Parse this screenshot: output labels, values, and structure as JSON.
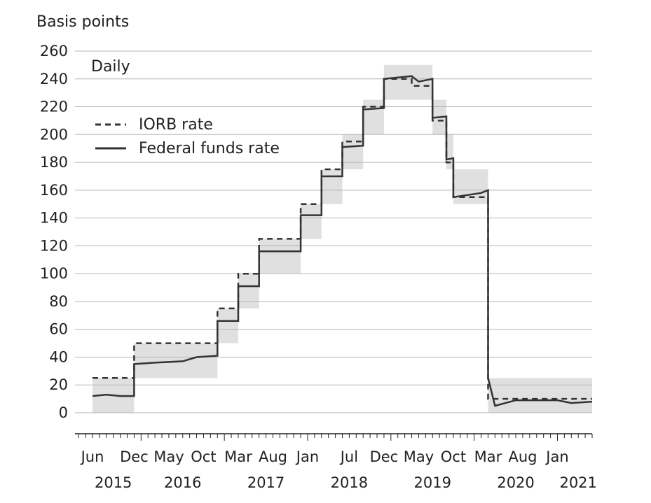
{
  "chart_data": {
    "type": "line",
    "ylabel": "Basis points",
    "annotation": "Daily",
    "ylim": [
      0,
      260
    ],
    "yticks": [
      0,
      20,
      40,
      60,
      80,
      100,
      120,
      140,
      160,
      180,
      200,
      220,
      240,
      260
    ],
    "grid": true,
    "legend_position": "top-left",
    "x_month_labels": [
      {
        "label": "Jun",
        "date": "2015-06"
      },
      {
        "label": "Dec",
        "date": "2015-12"
      },
      {
        "label": "May",
        "date": "2016-05"
      },
      {
        "label": "Oct",
        "date": "2016-10"
      },
      {
        "label": "Mar",
        "date": "2017-03"
      },
      {
        "label": "Aug",
        "date": "2017-08"
      },
      {
        "label": "Jan",
        "date": "2018-01"
      },
      {
        "label": "Jul",
        "date": "2018-07"
      },
      {
        "label": "Dec",
        "date": "2018-12"
      },
      {
        "label": "May",
        "date": "2019-05"
      },
      {
        "label": "Oct",
        "date": "2019-10"
      },
      {
        "label": "Mar",
        "date": "2020-03"
      },
      {
        "label": "Aug",
        "date": "2020-08"
      },
      {
        "label": "Jan",
        "date": "2021-01"
      }
    ],
    "x_year_labels": [
      {
        "label": "2015",
        "date": "2015-09"
      },
      {
        "label": "2016",
        "date": "2016-07"
      },
      {
        "label": "2017",
        "date": "2017-07"
      },
      {
        "label": "2018",
        "date": "2018-07"
      },
      {
        "label": "2019",
        "date": "2019-07"
      },
      {
        "label": "2020",
        "date": "2020-07"
      },
      {
        "label": "2021",
        "date": "2021-04"
      }
    ],
    "target_ranges": [
      {
        "start": "2015-06",
        "end": "2015-12",
        "low": 0,
        "high": 25
      },
      {
        "start": "2015-12",
        "end": "2016-12",
        "low": 25,
        "high": 50
      },
      {
        "start": "2016-12",
        "end": "2017-03",
        "low": 50,
        "high": 75
      },
      {
        "start": "2017-03",
        "end": "2017-06",
        "low": 75,
        "high": 100
      },
      {
        "start": "2017-06",
        "end": "2017-12",
        "low": 100,
        "high": 125
      },
      {
        "start": "2017-12",
        "end": "2018-03",
        "low": 125,
        "high": 150
      },
      {
        "start": "2018-03",
        "end": "2018-06",
        "low": 150,
        "high": 175
      },
      {
        "start": "2018-06",
        "end": "2018-09",
        "low": 175,
        "high": 200
      },
      {
        "start": "2018-09",
        "end": "2018-12",
        "low": 200,
        "high": 225
      },
      {
        "start": "2018-12",
        "end": "2019-07",
        "low": 225,
        "high": 250
      },
      {
        "start": "2019-07",
        "end": "2019-09",
        "low": 200,
        "high": 225
      },
      {
        "start": "2019-09",
        "end": "2019-10",
        "low": 175,
        "high": 200
      },
      {
        "start": "2019-10",
        "end": "2020-03",
        "low": 150,
        "high": 175
      },
      {
        "start": "2020-03",
        "end": "2021-06",
        "low": 0,
        "high": 25
      }
    ],
    "series": [
      {
        "name": "IORB rate",
        "style": "dashed",
        "points": [
          [
            "2015-06",
            25
          ],
          [
            "2015-12",
            25
          ],
          [
            "2015-12",
            50
          ],
          [
            "2016-12",
            50
          ],
          [
            "2016-12",
            75
          ],
          [
            "2017-03",
            75
          ],
          [
            "2017-03",
            100
          ],
          [
            "2017-06",
            100
          ],
          [
            "2017-06",
            125
          ],
          [
            "2017-12",
            125
          ],
          [
            "2017-12",
            150
          ],
          [
            "2018-03",
            150
          ],
          [
            "2018-03",
            175
          ],
          [
            "2018-06",
            175
          ],
          [
            "2018-06",
            195
          ],
          [
            "2018-09",
            195
          ],
          [
            "2018-09",
            220
          ],
          [
            "2018-12",
            220
          ],
          [
            "2018-12",
            240
          ],
          [
            "2019-04",
            240
          ],
          [
            "2019-04",
            235
          ],
          [
            "2019-07",
            235
          ],
          [
            "2019-07",
            210
          ],
          [
            "2019-09",
            210
          ],
          [
            "2019-09",
            180
          ],
          [
            "2019-10",
            180
          ],
          [
            "2019-10",
            155
          ],
          [
            "2020-03",
            155
          ],
          [
            "2020-03",
            110
          ],
          [
            "2020-03",
            10
          ],
          [
            "2021-06",
            10
          ]
        ]
      },
      {
        "name": "Federal funds rate",
        "style": "solid",
        "points": [
          [
            "2015-06",
            12
          ],
          [
            "2015-08",
            13
          ],
          [
            "2015-10",
            12
          ],
          [
            "2015-12",
            12
          ],
          [
            "2015-12",
            35
          ],
          [
            "2016-03",
            36
          ],
          [
            "2016-07",
            37
          ],
          [
            "2016-09",
            40
          ],
          [
            "2016-12",
            41
          ],
          [
            "2016-12",
            66
          ],
          [
            "2017-03",
            66
          ],
          [
            "2017-03",
            91
          ],
          [
            "2017-06",
            91
          ],
          [
            "2017-06",
            116
          ],
          [
            "2017-12",
            116
          ],
          [
            "2017-12",
            142
          ],
          [
            "2018-03",
            142
          ],
          [
            "2018-03",
            170
          ],
          [
            "2018-06",
            170
          ],
          [
            "2018-06",
            191
          ],
          [
            "2018-09",
            192
          ],
          [
            "2018-09",
            218
          ],
          [
            "2018-12",
            219
          ],
          [
            "2018-12",
            240
          ],
          [
            "2019-04",
            242
          ],
          [
            "2019-05",
            238
          ],
          [
            "2019-07",
            240
          ],
          [
            "2019-07",
            212
          ],
          [
            "2019-09",
            213
          ],
          [
            "2019-09",
            182
          ],
          [
            "2019-10",
            183
          ],
          [
            "2019-10",
            155
          ],
          [
            "2020-02",
            158
          ],
          [
            "2020-03",
            160
          ],
          [
            "2020-03",
            109
          ],
          [
            "2020-03",
            25
          ],
          [
            "2020-04",
            5
          ],
          [
            "2020-07",
            9
          ],
          [
            "2020-10",
            9
          ],
          [
            "2021-01",
            9
          ],
          [
            "2021-03",
            7
          ],
          [
            "2021-06",
            8
          ]
        ]
      }
    ]
  }
}
